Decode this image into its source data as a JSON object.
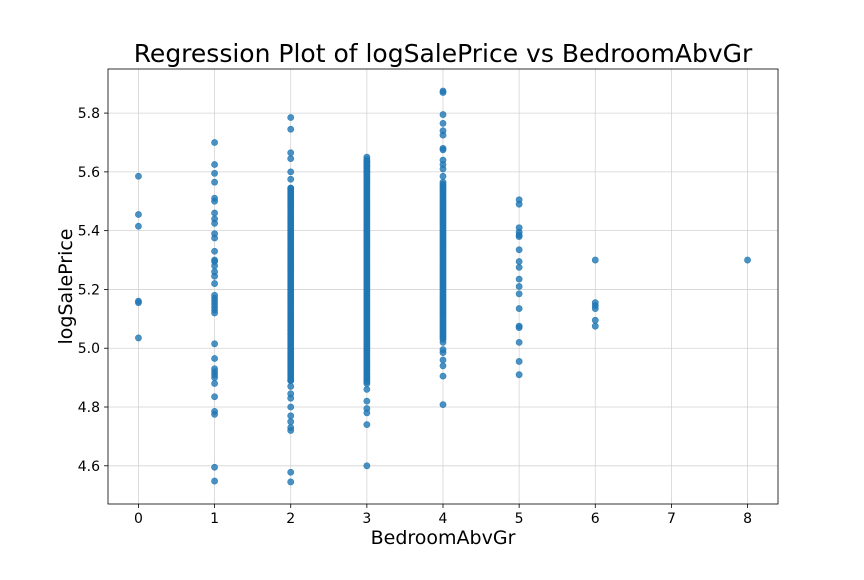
{
  "chart_data": {
    "type": "scatter",
    "title": "Regression Plot of logSalePrice vs BedroomAbvGr",
    "xlabel": "BedroomAbvGr",
    "ylabel": "logSalePrice",
    "xlim": [
      -0.4,
      8.4
    ],
    "ylim": [
      4.47,
      5.95
    ],
    "xticks": [
      0,
      1,
      2,
      3,
      4,
      5,
      6,
      7,
      8
    ],
    "xtick_labels": [
      "0",
      "1",
      "2",
      "3",
      "4",
      "5",
      "6",
      "7",
      "8"
    ],
    "yticks": [
      4.6,
      4.8,
      5.0,
      5.2,
      5.4,
      5.6,
      5.8
    ],
    "ytick_labels": [
      "4.6",
      "4.8",
      "5.0",
      "5.2",
      "5.4",
      "5.6",
      "5.8"
    ],
    "grid": true,
    "color": "#1f77b4",
    "series": [
      {
        "points": [
          [
            0,
            5.585
          ],
          [
            0,
            5.455
          ],
          [
            0,
            5.415
          ],
          [
            0,
            5.16
          ],
          [
            0,
            5.155
          ],
          [
            0,
            5.035
          ],
          [
            1,
            5.7
          ],
          [
            1,
            5.625
          ],
          [
            1,
            5.595
          ],
          [
            1,
            5.565
          ],
          [
            1,
            5.51
          ],
          [
            1,
            5.5
          ],
          [
            1,
            5.46
          ],
          [
            1,
            5.44
          ],
          [
            1,
            5.425
          ],
          [
            1,
            5.39
          ],
          [
            1,
            5.375
          ],
          [
            1,
            5.33
          ],
          [
            1,
            5.3
          ],
          [
            1,
            5.295
          ],
          [
            1,
            5.28
          ],
          [
            1,
            5.26
          ],
          [
            1,
            5.245
          ],
          [
            1,
            5.22
          ],
          [
            1,
            5.18
          ],
          [
            1,
            5.17
          ],
          [
            1,
            5.16
          ],
          [
            1,
            5.15
          ],
          [
            1,
            5.14
          ],
          [
            1,
            5.13
          ],
          [
            1,
            5.12
          ],
          [
            1,
            5.015
          ],
          [
            1,
            4.965
          ],
          [
            1,
            4.93
          ],
          [
            1,
            4.92
          ],
          [
            1,
            4.91
          ],
          [
            1,
            4.9
          ],
          [
            1,
            4.88
          ],
          [
            1,
            4.835
          ],
          [
            1,
            4.785
          ],
          [
            1,
            4.775
          ],
          [
            1,
            4.595
          ],
          [
            1,
            4.548
          ],
          [
            2,
            5.785
          ],
          [
            2,
            5.745
          ],
          [
            2,
            5.665
          ],
          [
            2,
            5.645
          ],
          [
            2,
            5.6
          ],
          [
            2,
            5.575
          ],
          [
            2,
            5.545
          ],
          [
            2,
            4.89
          ],
          [
            2,
            4.87
          ],
          [
            2,
            4.845
          ],
          [
            2,
            4.83
          ],
          [
            2,
            4.8
          ],
          [
            2,
            4.77
          ],
          [
            2,
            4.75
          ],
          [
            2,
            4.73
          ],
          [
            2,
            4.72
          ],
          [
            2,
            4.578
          ],
          [
            2,
            4.545
          ],
          [
            3,
            5.65
          ],
          [
            3,
            5.635
          ],
          [
            3,
            5.62
          ],
          [
            3,
            5.6
          ],
          [
            3,
            4.86
          ],
          [
            3,
            4.82
          ],
          [
            3,
            4.795
          ],
          [
            3,
            4.78
          ],
          [
            3,
            4.74
          ],
          [
            3,
            4.6
          ],
          [
            4,
            5.875
          ],
          [
            4,
            5.87
          ],
          [
            4,
            5.795
          ],
          [
            4,
            5.765
          ],
          [
            4,
            5.74
          ],
          [
            4,
            5.725
          ],
          [
            4,
            5.68
          ],
          [
            4,
            5.675
          ],
          [
            4,
            5.64
          ],
          [
            4,
            5.625
          ],
          [
            4,
            5.61
          ],
          [
            4,
            5.585
          ],
          [
            4,
            5.565
          ],
          [
            4,
            5.02
          ],
          [
            4,
            4.995
          ],
          [
            4,
            4.985
          ],
          [
            4,
            4.96
          ],
          [
            4,
            4.94
          ],
          [
            4,
            4.905
          ],
          [
            4,
            4.808
          ],
          [
            5,
            5.505
          ],
          [
            5,
            5.49
          ],
          [
            5,
            5.41
          ],
          [
            5,
            5.395
          ],
          [
            5,
            5.385
          ],
          [
            5,
            5.38
          ],
          [
            5,
            5.335
          ],
          [
            5,
            5.295
          ],
          [
            5,
            5.275
          ],
          [
            5,
            5.235
          ],
          [
            5,
            5.21
          ],
          [
            5,
            5.185
          ],
          [
            5,
            5.135
          ],
          [
            5,
            5.075
          ],
          [
            5,
            5.07
          ],
          [
            5,
            5.02
          ],
          [
            5,
            4.955
          ],
          [
            5,
            4.91
          ],
          [
            6,
            5.3
          ],
          [
            6,
            5.155
          ],
          [
            6,
            5.145
          ],
          [
            6,
            5.135
          ],
          [
            6,
            5.095
          ],
          [
            6,
            5.075
          ],
          [
            8,
            5.3
          ]
        ],
        "dense_ranges": [
          {
            "x": 2,
            "y_from": 4.89,
            "y_to": 5.545
          },
          {
            "x": 3,
            "y_from": 4.88,
            "y_to": 5.645
          },
          {
            "x": 4,
            "y_from": 5.03,
            "y_to": 5.56
          }
        ]
      }
    ]
  }
}
